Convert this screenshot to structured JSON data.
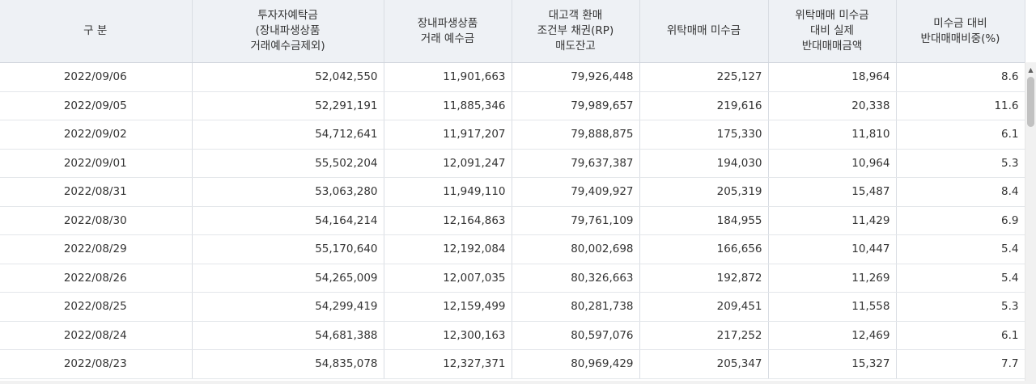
{
  "columns": [
    {
      "lines": [
        "구 분"
      ]
    },
    {
      "lines": [
        "투자자예탁금",
        "(장내파생상품",
        "거래예수금제외)"
      ]
    },
    {
      "lines": [
        "장내파생상품",
        "거래 예수금"
      ]
    },
    {
      "lines": [
        "대고객 환매",
        "조건부 채권(RP)",
        "매도잔고"
      ]
    },
    {
      "lines": [
        "위탁매매 미수금"
      ]
    },
    {
      "lines": [
        "위탁매매 미수금",
        "대비 실제",
        "반대매매금액"
      ]
    },
    {
      "lines": [
        "미수금 대비",
        "반대매매비중(%)"
      ]
    }
  ],
  "rows": [
    [
      "2022/09/06",
      "52,042,550",
      "11,901,663",
      "79,926,448",
      "225,127",
      "18,964",
      "8.6"
    ],
    [
      "2022/09/05",
      "52,291,191",
      "11,885,346",
      "79,989,657",
      "219,616",
      "20,338",
      "11.6"
    ],
    [
      "2022/09/02",
      "54,712,641",
      "11,917,207",
      "79,888,875",
      "175,330",
      "11,810",
      "6.1"
    ],
    [
      "2022/09/01",
      "55,502,204",
      "12,091,247",
      "79,637,387",
      "194,030",
      "10,964",
      "5.3"
    ],
    [
      "2022/08/31",
      "53,063,280",
      "11,949,110",
      "79,409,927",
      "205,319",
      "15,487",
      "8.4"
    ],
    [
      "2022/08/30",
      "54,164,214",
      "12,164,863",
      "79,761,109",
      "184,955",
      "11,429",
      "6.9"
    ],
    [
      "2022/08/29",
      "55,170,640",
      "12,192,084",
      "80,002,698",
      "166,656",
      "10,447",
      "5.4"
    ],
    [
      "2022/08/26",
      "54,265,009",
      "12,007,035",
      "80,326,663",
      "192,872",
      "11,269",
      "5.4"
    ],
    [
      "2022/08/25",
      "54,299,419",
      "12,159,499",
      "80,281,738",
      "209,451",
      "11,558",
      "5.3"
    ],
    [
      "2022/08/24",
      "54,681,388",
      "12,300,163",
      "80,597,076",
      "217,252",
      "12,469",
      "6.1"
    ],
    [
      "2022/08/23",
      "54,835,078",
      "12,327,371",
      "80,969,429",
      "205,347",
      "15,327",
      "7.7"
    ]
  ],
  "scrollbar": {
    "up_icon": "caret-up-icon"
  },
  "colors": {
    "header_bg": "#eef1f5",
    "border": "#d9dde3",
    "text": "#333333"
  }
}
